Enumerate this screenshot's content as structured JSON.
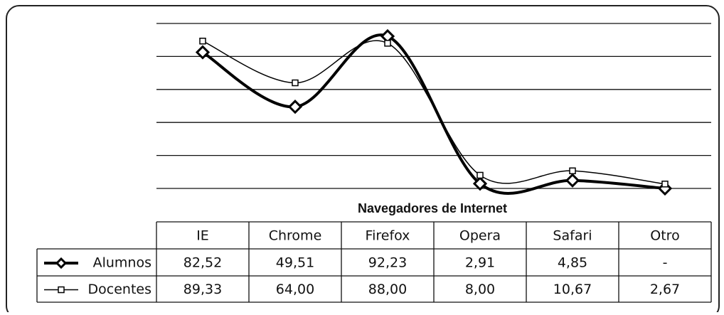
{
  "chart_data": {
    "type": "line",
    "x_label": "Navegadores de Internet",
    "categories": [
      "IE",
      "Chrome",
      "Firefox",
      "Opera",
      "Safari",
      "Otro"
    ],
    "series": [
      {
        "name": "Alumnos",
        "color": "#000000",
        "values": [
          82.52,
          49.51,
          92.23,
          2.91,
          4.85,
          0
        ],
        "value_labels": [
          "82,52",
          "49,51",
          "92,23",
          "2,91",
          "4,85",
          "-"
        ]
      },
      {
        "name": "Docentes",
        "color": "#000000",
        "values": [
          89.33,
          64.0,
          88.0,
          8.0,
          10.67,
          2.67
        ],
        "value_labels": [
          "89,33",
          "64,00",
          "88,00",
          "8,00",
          "10,67",
          "2,67"
        ]
      }
    ],
    "ylim": [
      0,
      100
    ],
    "yticks": [
      0,
      20,
      40,
      60,
      80,
      100
    ],
    "grid": true
  }
}
